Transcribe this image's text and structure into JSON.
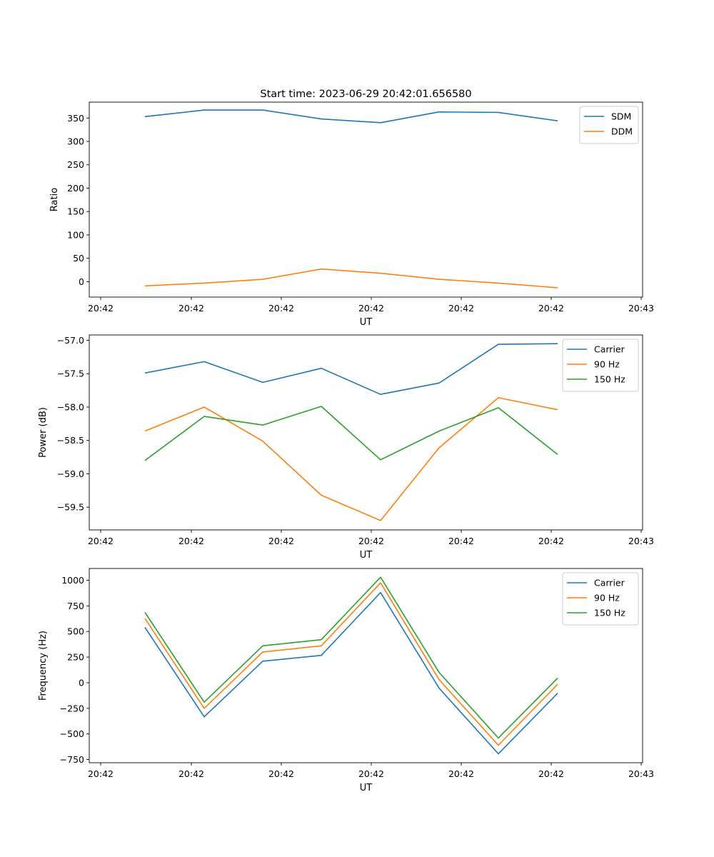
{
  "figure": {
    "title": "Start time: 2023-06-29 20:42:01.656580"
  },
  "chart_data": [
    {
      "type": "line",
      "xlabel": "UT",
      "ylabel": "Ratio",
      "x_tick_labels": [
        "20:42",
        "20:42",
        "20:42",
        "20:42",
        "20:42",
        "20:42",
        "20:42",
        "20:43"
      ],
      "yticks": [
        0,
        50,
        100,
        150,
        200,
        250,
        300,
        350
      ],
      "ylim": [
        -33,
        384
      ],
      "grid": false,
      "legend": "top-right",
      "series": [
        {
          "name": "SDM",
          "color": "#1f77b4",
          "values": [
            353,
            367,
            367,
            348,
            340,
            363,
            362,
            344
          ]
        },
        {
          "name": "DDM",
          "color": "#ff7f0e",
          "values": [
            -9,
            -3,
            5,
            27,
            18,
            5,
            -3,
            -13
          ]
        }
      ]
    },
    {
      "type": "line",
      "xlabel": "UT",
      "ylabel": "Power (dB)",
      "x_tick_labels": [
        "20:42",
        "20:42",
        "20:42",
        "20:42",
        "20:42",
        "20:42",
        "20:42",
        "20:43"
      ],
      "yticks": [
        -59.5,
        -59.0,
        -58.5,
        -58.0,
        -57.5,
        -57.0
      ],
      "ytick_labels": [
        "−59.5",
        "−59.0",
        "−58.5",
        "−58.0",
        "−57.5",
        "−57.0"
      ],
      "ylim": [
        -59.84,
        -56.92
      ],
      "grid": false,
      "legend": "top-right",
      "series": [
        {
          "name": "Carrier",
          "color": "#1f77b4",
          "values": [
            -57.49,
            -57.32,
            -57.63,
            -57.42,
            -57.81,
            -57.64,
            -57.06,
            -57.05
          ]
        },
        {
          "name": "90 Hz",
          "color": "#ff7f0e",
          "values": [
            -58.36,
            -58.0,
            -58.51,
            -59.32,
            -59.7,
            -58.61,
            -57.86,
            -58.04
          ]
        },
        {
          "name": "150 Hz",
          "color": "#2ca02c",
          "values": [
            -58.8,
            -58.14,
            -58.27,
            -57.99,
            -58.79,
            -58.36,
            -58.01,
            -58.71
          ]
        }
      ]
    },
    {
      "type": "line",
      "xlabel": "UT",
      "ylabel": "Frequency (Hz)",
      "x_tick_labels": [
        "20:42",
        "20:42",
        "20:42",
        "20:42",
        "20:42",
        "20:42",
        "20:42",
        "20:43"
      ],
      "yticks": [
        -750,
        -500,
        -250,
        0,
        250,
        500,
        750,
        1000
      ],
      "ytick_labels": [
        "−750",
        "−500",
        "−250",
        "0",
        "250",
        "500",
        "750",
        "1000"
      ],
      "ylim": [
        -781,
        1115
      ],
      "grid": false,
      "legend": "top-right",
      "series": [
        {
          "name": "Carrier",
          "color": "#1f77b4",
          "values": [
            540,
            -333,
            210,
            267,
            880,
            -53,
            -694,
            -103
          ]
        },
        {
          "name": "90 Hz",
          "color": "#ff7f0e",
          "values": [
            628,
            -250,
            300,
            360,
            975,
            30,
            -610,
            -15
          ]
        },
        {
          "name": "150 Hz",
          "color": "#2ca02c",
          "values": [
            686,
            -190,
            360,
            420,
            1030,
            100,
            -540,
            45
          ]
        }
      ]
    }
  ]
}
